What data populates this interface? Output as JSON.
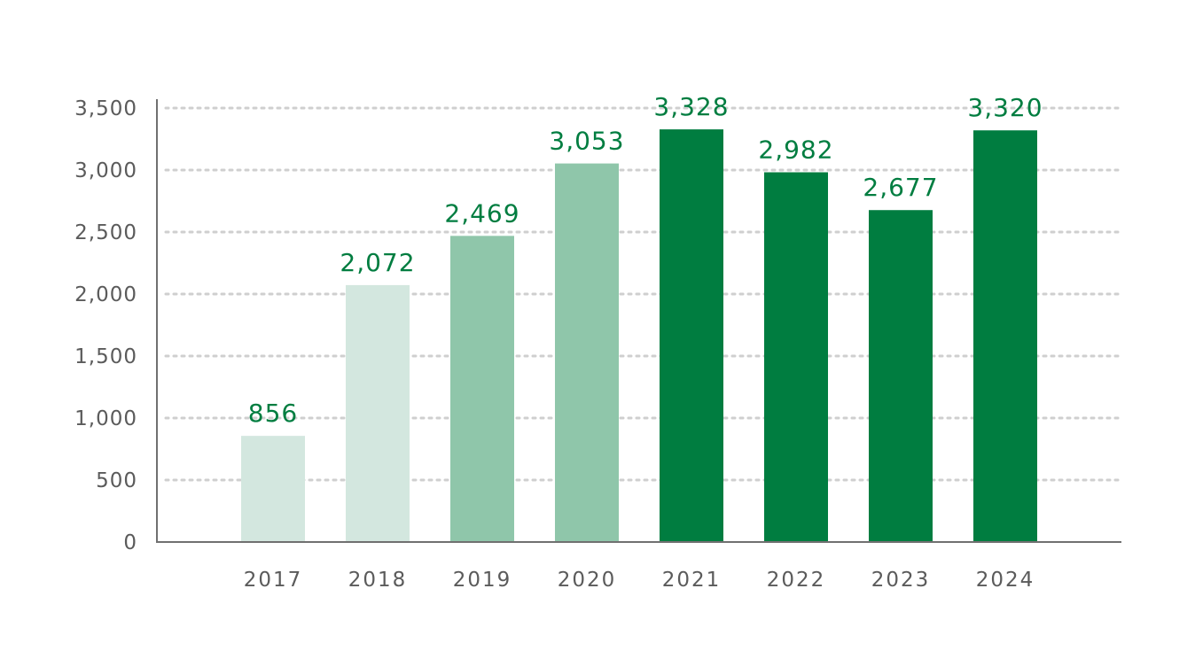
{
  "chart_data": {
    "type": "bar",
    "title": "",
    "xlabel": "",
    "ylabel": "",
    "categories": [
      "2017",
      "2018",
      "2019",
      "2020",
      "2021",
      "2022",
      "2023",
      "2024"
    ],
    "values": [
      856,
      2072,
      2469,
      3053,
      3328,
      2982,
      2677,
      3320
    ],
    "value_labels": [
      "856",
      "2,072",
      "2,469",
      "3,053",
      "3,328",
      "2,982",
      "2,677",
      "3,320"
    ],
    "ylim": [
      0,
      3500
    ],
    "yticks": [
      0,
      500,
      1000,
      1500,
      2000,
      2500,
      3000,
      3500
    ],
    "ytick_labels": [
      "0",
      "500",
      "1,000",
      "1,500",
      "2,000",
      "2,500",
      "3,000",
      "3,500"
    ],
    "grid": "horizontal dotted",
    "bar_colors": [
      "#d3e7df",
      "#d3e7df",
      "#8fc6aa",
      "#8fc6aa",
      "#007d40",
      "#007d40",
      "#007d40",
      "#007d40"
    ],
    "label_color": "#007d40"
  }
}
